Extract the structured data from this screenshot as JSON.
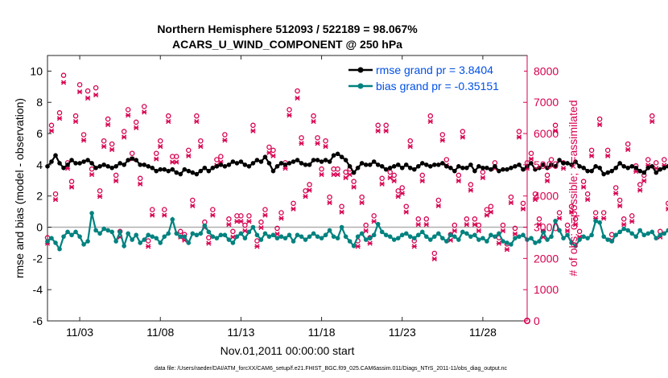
{
  "title_line1": "Northern Hemisphere 512093 / 522189 = 98.067%",
  "title_line2": "ACARS_U_WIND_COMPONENT @ 250 hPa",
  "footer": "data file: /Users/raeder/DAI/ATM_forcXX/CAM6_setup/f.e21.FHIST_BGC.f09_025.CAM6assim.011/Diags_NTrS_2011-11/obs_diag_output.nc",
  "colors": {
    "rmse": "#000000",
    "bias": "#00827f",
    "obs": "#d6004f",
    "legend_text": "#0050e6",
    "zero_line": "#b0b0b0"
  },
  "chart_data": {
    "type": "line",
    "title": "Northern Hemisphere 512093 / 522189 = 98.067%",
    "subtitle": "ACARS_U_WIND_COMPONENT @ 250 hPa",
    "xlabel": "Nov.01,2011 00:00:00 start",
    "ylabel_left": "rmse and bias (model - observation)",
    "ylabel_right": "# of obs: o=possible; ×=assimilated",
    "xlim": [
      1.0,
      30.75
    ],
    "ylim_left": [
      -6,
      11
    ],
    "ylim_right": [
      0,
      8500
    ],
    "x_ticks": [
      3,
      8,
      13,
      18,
      23,
      28
    ],
    "x_tick_labels": [
      "11/03",
      "11/08",
      "11/13",
      "11/18",
      "11/23",
      "11/28"
    ],
    "y_ticks_left": [
      -6,
      -4,
      -2,
      0,
      2,
      4,
      6,
      8,
      10
    ],
    "y_ticks_right": [
      0,
      1000,
      2000,
      3000,
      4000,
      5000,
      6000,
      7000,
      8000
    ],
    "legend": [
      {
        "label": "rmse grand pr = 3.8404",
        "series": "rmse"
      },
      {
        "label": "bias grand pr = -0.35151",
        "series": "bias"
      }
    ],
    "x_step_days": 0.25,
    "x_start_day": 1.0,
    "series": [
      {
        "name": "rmse",
        "axis": "left",
        "values": [
          3.9,
          4.2,
          4.6,
          4.1,
          3.8,
          4.0,
          4.3,
          4.1,
          4.1,
          4.2,
          4.3,
          4.1,
          3.8,
          3.9,
          4.0,
          3.9,
          3.8,
          3.9,
          4.1,
          4.0,
          4.3,
          4.4,
          4.3,
          4.0,
          4.0,
          3.9,
          3.8,
          3.6,
          3.7,
          3.7,
          3.6,
          3.7,
          3.5,
          3.4,
          3.7,
          3.6,
          3.5,
          3.4,
          3.6,
          3.8,
          3.6,
          3.8,
          3.9,
          4.0,
          3.9,
          4.0,
          4.2,
          4.1,
          4.2,
          4.0,
          3.9,
          4.1,
          4.3,
          4.2,
          4.5,
          4.1,
          3.6,
          3.9,
          4.1,
          4.0,
          4.1,
          4.2,
          4.3,
          4.1,
          4.0,
          4.0,
          4.3,
          4.3,
          4.2,
          4.3,
          4.2,
          4.6,
          4.7,
          4.5,
          4.3,
          3.9,
          3.5,
          3.8,
          4.1,
          4.0,
          4.0,
          4.2,
          4.0,
          3.9,
          3.7,
          3.8,
          3.9,
          4.0,
          3.8,
          4.0,
          3.8,
          3.7,
          3.9,
          4.1,
          4.0,
          3.9,
          4.0,
          4.0,
          4.1,
          3.9,
          3.8,
          3.6,
          3.9,
          3.8,
          3.8,
          4.0,
          3.6,
          3.9,
          3.8,
          3.8,
          3.7,
          3.9,
          3.6,
          3.7,
          3.7,
          3.8,
          3.9,
          4.0,
          3.7,
          3.9,
          4.1,
          3.7,
          3.8,
          4.0,
          3.8,
          4.0,
          3.9,
          4.3,
          4.1,
          4.1,
          4.0,
          4.2,
          3.9,
          3.8,
          3.6,
          3.6,
          3.9,
          3.8,
          3.4,
          3.5,
          3.6,
          3.8,
          4.1,
          3.9,
          3.8,
          3.9,
          3.8,
          3.6,
          3.5,
          3.8,
          3.9,
          3.5,
          3.7,
          3.8,
          3.9,
          3.9,
          4.3,
          3.9,
          3.8,
          3.7,
          3.8,
          3.9,
          4.0,
          3.8,
          4.0,
          3.7,
          3.8,
          3.9,
          3.6,
          4.0,
          3.8,
          4.3,
          4.1,
          4.3,
          4.2,
          4.3,
          4.1,
          4.1,
          4.0,
          4.3,
          4.6,
          4.1,
          4.0,
          3.9
        ]
      },
      {
        "name": "bias",
        "axis": "left",
        "values": [
          -0.9,
          -0.7,
          -1.0,
          -1.4,
          -0.6,
          -0.3,
          -0.5,
          -0.3,
          -0.6,
          -1.1,
          -0.9,
          0.9,
          -0.2,
          -0.4,
          -0.1,
          -0.2,
          -0.3,
          -0.9,
          -0.3,
          -1.2,
          -0.4,
          -0.8,
          -0.5,
          -1.0,
          -0.8,
          -0.5,
          -0.6,
          -0.7,
          -1.0,
          -0.6,
          -0.4,
          0.5,
          -0.4,
          -0.6,
          -0.6,
          -1.0,
          -0.4,
          -0.5,
          -0.4,
          0.1,
          -0.3,
          -0.6,
          -0.7,
          -0.5,
          -0.5,
          -0.8,
          -1.0,
          -0.6,
          -0.4,
          -0.7,
          -0.3,
          0.0,
          -0.5,
          -0.8,
          -0.4,
          -0.6,
          -0.5,
          -0.7,
          -0.6,
          -0.7,
          -0.5,
          -0.9,
          -0.5,
          -0.6,
          -0.8,
          -0.6,
          -0.4,
          -0.6,
          -0.7,
          -0.5,
          -0.2,
          -0.6,
          -0.7,
          0.0,
          -0.6,
          -0.9,
          -1.2,
          -0.6,
          -0.4,
          -0.8,
          -0.7,
          -0.5,
          0.2,
          -0.3,
          -0.5,
          -0.6,
          -0.8,
          -0.7,
          -0.5,
          -0.4,
          -0.6,
          -0.7,
          -0.5,
          -0.3,
          -0.6,
          -0.8,
          -0.6,
          -0.4,
          -0.7,
          -0.9,
          -0.5,
          -0.6,
          -0.8,
          -0.3,
          -0.4,
          -0.6,
          -0.5,
          -0.8,
          -0.7,
          -0.9,
          -0.5,
          -0.6,
          -0.4,
          -0.9,
          -1.0,
          -1.1,
          -0.7,
          -0.6,
          -0.5,
          -0.8,
          -0.7,
          -1.0,
          -0.9,
          -0.3,
          -0.8,
          -0.6,
          0.4,
          -0.2,
          -0.7,
          -0.5,
          -1.0,
          -1.2,
          -0.8,
          -0.6,
          -0.7,
          -0.5,
          0.4,
          0.3,
          -0.6,
          -0.8,
          -0.9,
          -0.5,
          -0.3,
          -0.1,
          -0.2,
          -0.4,
          -0.6,
          -0.2,
          -0.5,
          -0.4,
          -0.3,
          -0.7,
          -0.5,
          -0.4,
          -0.2,
          -0.6,
          -0.5,
          -0.4,
          -0.5,
          -0.3,
          -0.6,
          -0.5,
          -0.6,
          -0.4,
          -0.5,
          -0.3,
          -0.4,
          -0.6,
          -0.7,
          -0.5,
          -0.2,
          -1.2,
          -0.6,
          -0.5,
          0.0,
          -0.3,
          -0.7,
          -0.4,
          -0.5,
          -0.8,
          -0.5,
          -0.6,
          -0.5,
          -1.1,
          -0.5,
          -0.6
        ]
      },
      {
        "name": "obs_possible",
        "axis": "right",
        "values": [
          2600,
          6200,
          4000,
          6600,
          7800,
          5000,
          4400,
          6500,
          7500,
          5900,
          7300,
          4800,
          7400,
          4100,
          5700,
          6400,
          5600,
          4600,
          2800,
          6000,
          6700,
          5300,
          6300,
          4500,
          6800,
          2500,
          3500,
          5300,
          5700,
          3500,
          6500,
          5200,
          5200,
          2800,
          2700,
          5400,
          3800,
          6500,
          5700,
          3100,
          2600,
          3500,
          5100,
          5200,
          5900,
          3200,
          2800,
          3300,
          3300,
          3000,
          3300,
          6200,
          2500,
          3100,
          3500,
          5500,
          5400,
          2900,
          3400,
          5000,
          6700,
          3700,
          7300,
          5800,
          4100,
          4300,
          6500,
          5800,
          4800,
          5700,
          3900,
          4800,
          4800,
          3600,
          4700,
          4800,
          4400,
          2500,
          3900,
          3000,
          2600,
          3300,
          6200,
          4500,
          6200,
          4700,
          4600,
          4100,
          4200,
          3600,
          5700,
          2500,
          3200,
          4600,
          3200,
          6500,
          2100,
          3800,
          5900,
          5100,
          2700,
          3000,
          4600,
          6000,
          3200,
          4300,
          3200,
          3000,
          4700,
          3500,
          3600,
          5000,
          2600,
          3000,
          2400,
          3900,
          2900,
          6000,
          3700,
          5000,
          5300,
          4000,
          3200,
          2800,
          4600,
          5100,
          6200,
          3400,
          5000,
          3000,
          3600,
          3200,
          2800,
          4400,
          4000,
          5400,
          3400,
          6400,
          3400,
          5400,
          2700,
          4200,
          3800,
          3200,
          5600,
          3300,
          4900,
          4300,
          4600,
          5100,
          6500,
          5000,
          2800,
          5100,
          3700,
          6100,
          3200,
          4700,
          3600,
          3000,
          3100,
          3000,
          5400,
          2800,
          5200,
          3700,
          4600,
          3400,
          2600,
          3900,
          5100,
          2600,
          4700,
          4500,
          5300
        ]
      },
      {
        "name": "obs_assimilated",
        "axis": "right",
        "values": [
          2550,
          6150,
          3950,
          6550,
          7700,
          4950,
          4350,
          6450,
          7400,
          5850,
          7200,
          4750,
          7300,
          4050,
          5650,
          6350,
          5550,
          4550,
          2750,
          5950,
          6650,
          5250,
          6250,
          4450,
          6750,
          2450,
          3450,
          5250,
          5650,
          3450,
          6450,
          5150,
          5150,
          2750,
          2650,
          5350,
          3750,
          6450,
          5650,
          3050,
          2550,
          3450,
          5050,
          5150,
          5850,
          3150,
          2750,
          3250,
          3250,
          2950,
          3250,
          6150,
          2450,
          3050,
          3450,
          5450,
          5350,
          2850,
          3350,
          4950,
          6650,
          3650,
          7200,
          5750,
          4050,
          4250,
          6450,
          5750,
          4750,
          5650,
          3850,
          4750,
          4750,
          3550,
          4650,
          4750,
          4350,
          2450,
          3850,
          2950,
          2550,
          3250,
          6150,
          4450,
          6150,
          4650,
          4550,
          4050,
          4150,
          3550,
          5650,
          2450,
          3150,
          4550,
          3150,
          6450,
          2050,
          3750,
          5850,
          5050,
          2650,
          2950,
          4550,
          5950,
          3150,
          4250,
          3150,
          2950,
          4650,
          3450,
          3550,
          4950,
          2550,
          2950,
          2350,
          3850,
          2850,
          5950,
          3650,
          4950,
          5250,
          3950,
          3150,
          2750,
          4550,
          5050,
          6150,
          3350,
          4950,
          2950,
          3550,
          3150,
          2750,
          4350,
          3950,
          5350,
          3350,
          6350,
          3350,
          5350,
          2650,
          4150,
          3750,
          3150,
          5550,
          3250,
          4850,
          4250,
          4550,
          5050,
          6450,
          4950,
          2750,
          5050,
          3650,
          6050,
          3150,
          4650,
          3550,
          2950,
          3050,
          2950,
          5350,
          2750,
          5150,
          3650,
          4550,
          3350,
          2550,
          3850,
          5050,
          2550,
          4650,
          4450,
          5250
        ]
      }
    ],
    "annotations": [
      {
        "series": "obs_possible",
        "x": 30.75,
        "y": 0,
        "marker": "o"
      }
    ]
  }
}
